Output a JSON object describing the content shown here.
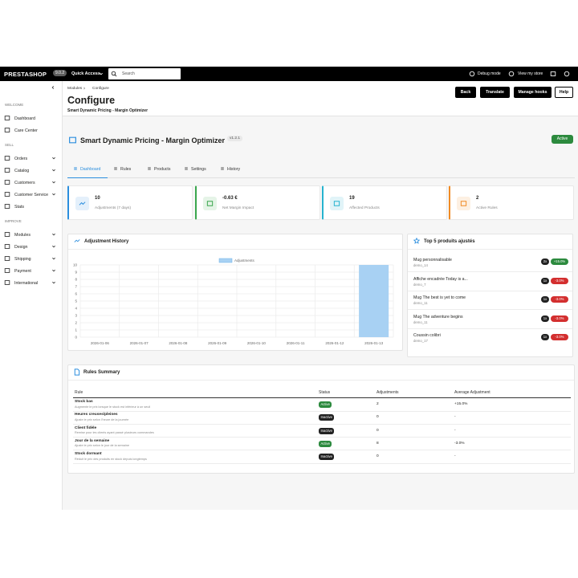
{
  "topbar": {
    "logo": "PRESTASHOP",
    "version": "9.0.2",
    "quick_access": "Quick Access",
    "search_placeholder": "Search",
    "debug": "Debug mode",
    "view_store": "View my store"
  },
  "sidebar": {
    "sections": [
      {
        "title": "WELCOME",
        "items": [
          "Dashboard",
          "Care Center"
        ]
      },
      {
        "title": "SELL",
        "items": [
          "Orders",
          "Catalog",
          "Customers",
          "Customer Service",
          "Stats"
        ]
      },
      {
        "title": "IMPROVE",
        "items": [
          "Modules",
          "Design",
          "Shipping",
          "Payment",
          "International"
        ]
      }
    ]
  },
  "page_header": {
    "breadcrumb": [
      "Modules",
      "Configure"
    ],
    "title": "Configure",
    "subtitle": "Smart Dynamic Pricing - Margin Optimizer",
    "buttons": [
      "Back",
      "Translate",
      "Manage hooks",
      "Help"
    ]
  },
  "module": {
    "title": "Smart Dynamic Pricing - Margin Optimizer",
    "version": "v1.2.1",
    "status": "Active",
    "tabs": [
      "Dashboard",
      "Rules",
      "Products",
      "Settings",
      "History"
    ]
  },
  "kpis": [
    {
      "value": 10,
      "label": "Adjustments (7 days)"
    },
    {
      "value": "-0.63 €",
      "label": "Net Margin Impact"
    },
    {
      "value": 19,
      "label": "Affected Products"
    },
    {
      "value": 2,
      "label": "Active Rules"
    }
  ],
  "chart_data": {
    "type": "bar",
    "title": "Adjustment History",
    "categories": [
      "2026-01-06",
      "2026-01-07",
      "2026-01-08",
      "2026-01-09",
      "2026-01-10",
      "2026-01-11",
      "2026-01-12",
      "2026-01-13"
    ],
    "series": [
      {
        "name": "Adjustments",
        "color": "#a8d1f3",
        "values": [
          0,
          0,
          0,
          0,
          0,
          0,
          0,
          10
        ]
      }
    ],
    "ylim": [
      0,
      10
    ],
    "yticks": [
      0,
      1,
      2,
      3,
      4,
      5,
      6,
      7,
      8,
      9,
      10
    ],
    "grid": true
  },
  "top_products": {
    "title": "Top 5 produits ajustés",
    "rows": [
      {
        "name": "Mug personnalisable",
        "ref": "demo_14",
        "count": "2x",
        "change": "+15.0%"
      },
      {
        "name": "Affiche encadrée Today is a...",
        "ref": "demo_7",
        "count": "1x",
        "change": "-3.0%"
      },
      {
        "name": "Mug The best is yet to come",
        "ref": "demo_11",
        "count": "1x",
        "change": "-3.0%"
      },
      {
        "name": "Mug The adventure begins",
        "ref": "demo_11",
        "count": "1x",
        "change": "-3.0%"
      },
      {
        "name": "Coussin colibri",
        "ref": "demo_17",
        "count": "1x",
        "change": "-3.0%"
      }
    ]
  },
  "rules_summary": {
    "title": "Rules Summary",
    "headers": [
      "Rule",
      "Status",
      "Adjustments",
      "Average Adjustment"
    ],
    "rows": [
      {
        "name": "Stock bas",
        "description": "Augmente le prix lorsque le stock est inférieur à un seuil",
        "status": "Active",
        "adjustments": 2,
        "average": "+15.0%"
      },
      {
        "name": "Heures creuses/pleines",
        "description": "Ajuste le prix selon l'heure de la journée",
        "status": "Inactive",
        "adjustments": 0,
        "average": "-"
      },
      {
        "name": "Client fidèle",
        "description": "Remise pour les clients ayant passé plusieurs commandes",
        "status": "Inactive",
        "adjustments": 0,
        "average": "-"
      },
      {
        "name": "Jour de la semaine",
        "description": "Ajuste le prix selon le jour de la semaine",
        "status": "Active",
        "adjustments": 8,
        "average": "-3.0%"
      },
      {
        "name": "Stock dormant",
        "description": "Réduit le prix des produits en stock depuis longtemps",
        "status": "Inactive",
        "adjustments": 0,
        "average": "-"
      }
    ]
  }
}
